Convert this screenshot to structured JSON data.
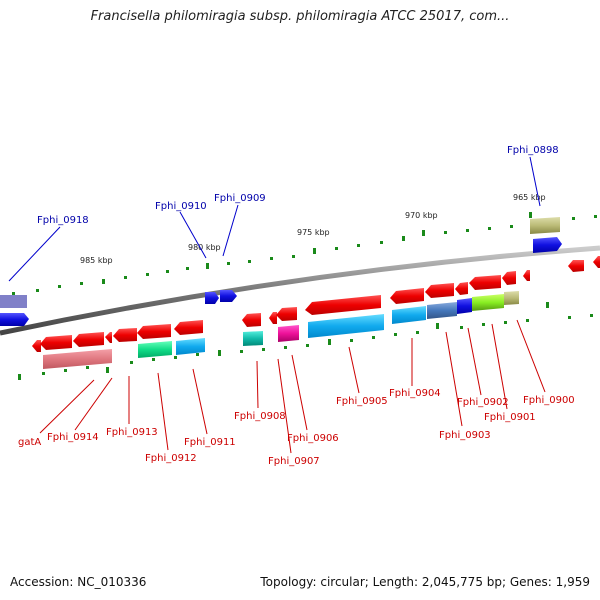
{
  "title": "Francisella philomiragia subsp. philomiragia ATCC 25017, com...",
  "footer": {
    "accession": "Accession: NC_010336",
    "summary": "Topology: circular; Length: 2,045,775 bp; Genes: 1,959"
  },
  "kbp_labels": [
    "985 kbp",
    "980 kbp",
    "975 kbp",
    "970 kbp",
    "965 kbp"
  ],
  "genes_forward": [
    "Fphi_0918",
    "Fphi_0910",
    "Fphi_0909",
    "Fphi_0898"
  ],
  "genes_reverse": [
    "gatA",
    "Fphi_0914",
    "Fphi_0913",
    "Fphi_0912",
    "Fphi_0911",
    "Fphi_0908",
    "Fphi_0907",
    "Fphi_0906",
    "Fphi_0905",
    "Fphi_0904",
    "Fphi_0903",
    "Fphi_0902",
    "Fphi_0901",
    "Fphi_0900"
  ],
  "colors": {
    "backbone": "#808080",
    "forward_gene": "#1010e0",
    "reverse_gene": "#ee1111",
    "label_forward": "#0000aa",
    "label_reverse": "#cc0000",
    "ticks": "#1a8a1a"
  }
}
